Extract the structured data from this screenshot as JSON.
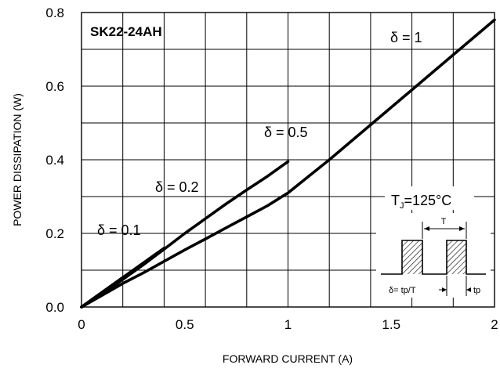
{
  "chart_data": {
    "type": "line",
    "title": "SK22-24AH",
    "xlabel": "FORWARD CURRENT (A)",
    "ylabel": "POWER DISSIPATION (W)",
    "xlim": [
      0,
      2
    ],
    "ylim": [
      0,
      0.8
    ],
    "x_ticks": [
      "0",
      "0.5",
      "1",
      "1.5",
      "2"
    ],
    "y_ticks": [
      "0.0",
      "0.2",
      "0.4",
      "0.6",
      "0.8"
    ],
    "grid": true,
    "series": [
      {
        "name": "δ = 1",
        "x": [
          0,
          0.1,
          0.2,
          0.3,
          0.4,
          0.5,
          0.6,
          0.7,
          0.8,
          0.9,
          1.0,
          1.2,
          1.4,
          1.6,
          1.8,
          2.0
        ],
        "y": [
          0,
          0.032,
          0.064,
          0.093,
          0.124,
          0.155,
          0.185,
          0.215,
          0.245,
          0.275,
          0.31,
          0.4,
          0.495,
          0.59,
          0.685,
          0.78
        ]
      },
      {
        "name": "δ = 0.5",
        "x": [
          0,
          0.1,
          0.2,
          0.3,
          0.4,
          0.5,
          0.6,
          0.7,
          0.8,
          0.9,
          1.0
        ],
        "y": [
          0,
          0.035,
          0.075,
          0.115,
          0.157,
          0.2,
          0.24,
          0.28,
          0.318,
          0.355,
          0.395
        ]
      },
      {
        "name": "δ = 0.2",
        "x": [
          0,
          0.1,
          0.2,
          0.3,
          0.4
        ],
        "y": [
          0,
          0.04,
          0.08,
          0.12,
          0.16
        ]
      },
      {
        "name": "δ = 0.1",
        "x": [
          0,
          0.05,
          0.1,
          0.15,
          0.2
        ],
        "y": [
          0,
          0.02,
          0.04,
          0.06,
          0.08
        ]
      }
    ],
    "annotations": {
      "tj": "T",
      "tj_sub": "J",
      "tj_value": "=125°C",
      "period_label": "T",
      "duty_formula": "δ= tp/T",
      "tp_label": "tp"
    }
  }
}
